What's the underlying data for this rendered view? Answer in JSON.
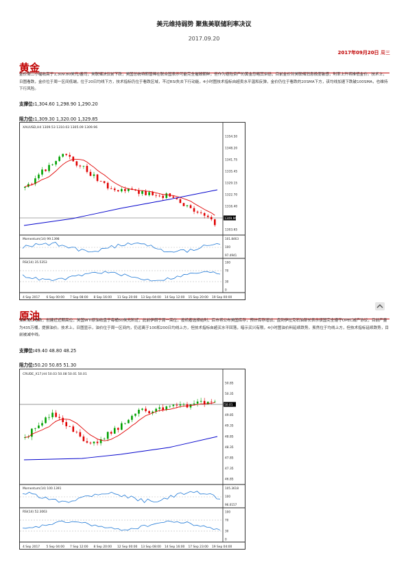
{
  "header": {
    "title": "美元维持弱势 聚焦美联储利率决议",
    "date": "2017.09.20",
    "issue_date": "2017年09月20日",
    "weekday": "周三"
  },
  "sections": [
    {
      "title": "黄金",
      "body": "金价周二小幅收高于1,309.80美元/盎司，美联储决议前下跌，美国总统特朗普稀在联合国表示可能完全摧毁朝鲜，但作为避险资产的黄金忽略其讲话，目前金价对美联储消息极度敏感，利率上升将推低金价。技术上，日图看跌，金价位于周一区间低端，位于20日均线下方，技术指标仍位于看跌区域，不过RSI失去下行动能，4小时图技术指标自超卖水平温和反弹，金价仍位于看跌的20SMA下方，该均线加速下跌破100SMA，也维持下行风险。",
      "support_label": "支撑位:",
      "support_values": "1,304.60 1,298.90 1,290.20",
      "resistance_label": "阻力位:",
      "resistance_values": "1,309.30 1,320.00 1,329.85",
      "chart": {
        "header": "XAUUSD,H4  1309.53 1310.03 1305.09 1309.96",
        "price_ticks": [
          "1354.50",
          "1348.20",
          "1341.75",
          "1335.45",
          "1329.15",
          "1322.70",
          "1316.40",
          "1309.96",
          "1303.65"
        ],
        "current_price": "1309.96",
        "momentum_label": "Momentum(14) 99.1398",
        "momentum_ticks": [
          "101.8463",
          "100",
          "97.4941"
        ],
        "rsi_label": "RSI(14) 35.5353",
        "rsi_ticks": [
          "100",
          "70",
          "30",
          "0"
        ],
        "x_ticks": [
          "4 Sep 2017",
          "6 Sep 00:00",
          "7 Sep 08:00",
          "8 Sep 16:00",
          "11 Sep 20:00",
          "13 Sep 04:00",
          "14 Sep 12:00",
          "15 Sep 20:00",
          "19 Sep 00:00"
        ]
      }
    },
    {
      "title": "原油",
      "body": "油价周二收跌，创建近近期高位，美国WTI原油收盘于每桶50美元附近，此前伊朗于周一高位，投机者选择结利，后市将公布美国库存，预计库存增加，盘到伊拉克石油部长表示该国完全遵守OPEC减产协议，目前产量为435万桶，提振油价。技术上，日图显示，油价位于周一区间内，仍远离于100和200日均线上方，但技术指标自超买水平回落，暗示买兴有限，4小时图油价料延续跌势，虽然位于均线上方，但技术指标延续跌势，目前被减中线。",
      "support_label": "支撑位:",
      "support_values": "49.40 48.80 48.25",
      "resistance_label": "阻力位:",
      "resistance_values": "50.20 50.85 51.30",
      "chart": {
        "header": "CRUDE_X17,H4  50.03 50.08 50.01 50.01",
        "price_ticks": [
          "50.85",
          "50.35",
          "50.01",
          "49.85",
          "49.35",
          "48.85",
          "48.35",
          "47.85",
          "47.35",
          "46.85"
        ],
        "current_price": "50.01",
        "momentum_label": "Momentum(14) 100.1391",
        "momentum_ticks": [
          "105.3618",
          "100",
          "96.0157"
        ],
        "rsi_label": "RSI(14) 52.3063",
        "rsi_ticks": [
          "100",
          "70",
          "30",
          "0"
        ],
        "x_ticks": [
          "4 Sep 2017",
          "5 Sep 04:00",
          "7 Sep 12:00",
          "8 Sep 20:00",
          "12 Sep 00:00",
          "13 Sep 08:00",
          "14 Sep 16:00",
          "17 Sep 23:00",
          "19 Sep 04:00"
        ]
      }
    }
  ],
  "colors": {
    "accent": "#c00000",
    "up": "#00a000",
    "down": "#e00000",
    "ma_fast": "#e00000",
    "ma_slow": "#0000cc",
    "indicator": "#1e78d6"
  },
  "icons": {
    "back_to_top": "chevron-up-icon"
  }
}
